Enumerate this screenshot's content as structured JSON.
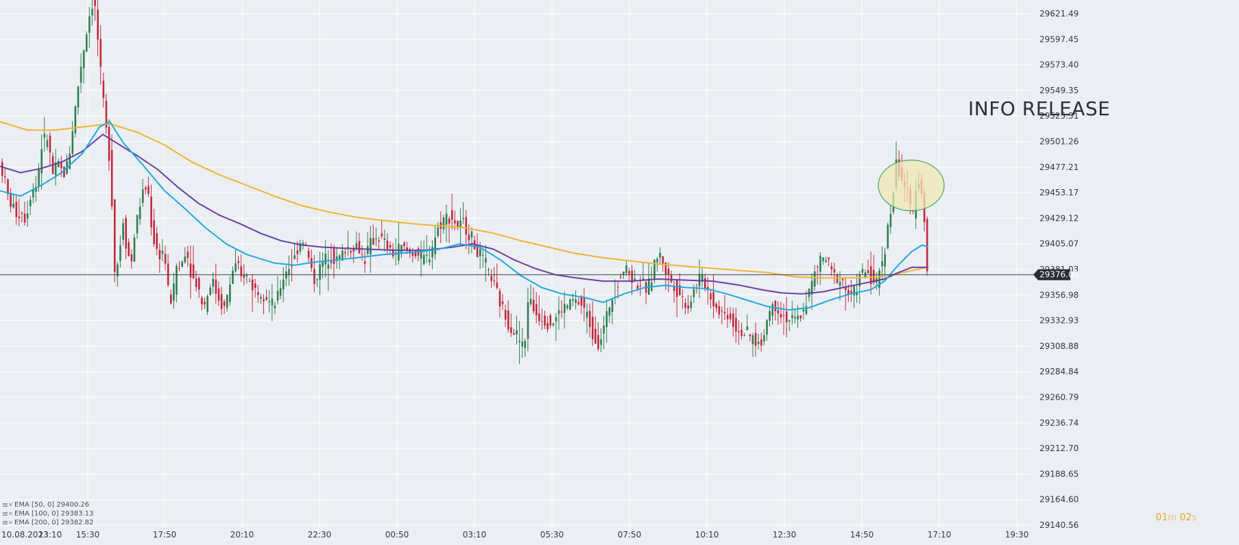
{
  "chart_data": {
    "type": "candlestick",
    "annotation": "INFO RELEASE",
    "current_price_label": "29376.05",
    "current_price": 29376.05,
    "y_ticks": [
      "29621.49",
      "29597.45",
      "29573.40",
      "29549.35",
      "29525.31",
      "29501.26",
      "29477.21",
      "29453.17",
      "29429.12",
      "29405.07",
      "29381.03",
      "29356.98",
      "29332.93",
      "29308.88",
      "29284.84",
      "29260.79",
      "29236.74",
      "29212.70",
      "29188.65",
      "29164.60",
      "29140.56"
    ],
    "ylim": [
      29130.0,
      29632.0
    ],
    "x_ticks": [
      "10.08.2023",
      "13:10",
      "15:30",
      "17:50",
      "20:10",
      "22:30",
      "00:50",
      "03:10",
      "05:30",
      "07:50",
      "10:10",
      "12:30",
      "14:50",
      "17:10",
      "19:30"
    ],
    "grid": true,
    "legend": [
      {
        "label": "EMA [50, 0] 29400.26",
        "color": "#1fa9e1"
      },
      {
        "label": "EMA [100, 0] 29383.13",
        "color": "#6a3fa0"
      },
      {
        "label": "EMA [200, 0] 29382.82",
        "color": "#f0b434"
      }
    ],
    "colors": {
      "up": "#2e7d4f",
      "down": "#c0283c",
      "ema50": "#1fa9e1",
      "ema100": "#6a3fa0",
      "ema200": "#f0b434",
      "price_line": "#3a3f46",
      "price_tag": "#2b3038",
      "highlight_fill": "#efe6b4",
      "highlight_stroke": "#3aa86a"
    },
    "path_points": [
      [
        0,
        29485
      ],
      [
        8,
        29470
      ],
      [
        16,
        29445
      ],
      [
        22,
        29440
      ],
      [
        28,
        29432
      ],
      [
        34,
        29436
      ],
      [
        40,
        29428
      ],
      [
        48,
        29455
      ],
      [
        56,
        29460
      ],
      [
        64,
        29500
      ],
      [
        72,
        29505
      ],
      [
        80,
        29470
      ],
      [
        88,
        29480
      ],
      [
        96,
        29470
      ],
      [
        104,
        29490
      ],
      [
        112,
        29530
      ],
      [
        120,
        29570
      ],
      [
        128,
        29600
      ],
      [
        136,
        29632
      ],
      [
        142,
        29626
      ],
      [
        150,
        29560
      ],
      [
        158,
        29510
      ],
      [
        164,
        29480
      ],
      [
        170,
        29380
      ],
      [
        176,
        29390
      ],
      [
        182,
        29430
      ],
      [
        188,
        29400
      ],
      [
        194,
        29385
      ],
      [
        200,
        29420
      ],
      [
        206,
        29440
      ],
      [
        212,
        29455
      ],
      [
        218,
        29460
      ],
      [
        224,
        29420
      ],
      [
        230,
        29400
      ],
      [
        236,
        29395
      ],
      [
        242,
        29400
      ],
      [
        248,
        29360
      ],
      [
        254,
        29350
      ],
      [
        260,
        29385
      ],
      [
        266,
        29380
      ],
      [
        272,
        29400
      ],
      [
        278,
        29390
      ],
      [
        284,
        29372
      ],
      [
        290,
        29368
      ],
      [
        296,
        29355
      ],
      [
        300,
        29345
      ],
      [
        306,
        29360
      ],
      [
        312,
        29372
      ],
      [
        318,
        29360
      ],
      [
        324,
        29350
      ],
      [
        330,
        29345
      ],
      [
        336,
        29360
      ],
      [
        342,
        29380
      ],
      [
        348,
        29385
      ],
      [
        354,
        29372
      ],
      [
        360,
        29378
      ],
      [
        366,
        29370
      ],
      [
        372,
        29365
      ],
      [
        378,
        29360
      ],
      [
        384,
        29362
      ],
      [
        390,
        29358
      ],
      [
        396,
        29350
      ],
      [
        402,
        29345
      ],
      [
        408,
        29355
      ],
      [
        414,
        29370
      ],
      [
        420,
        29380
      ],
      [
        426,
        29385
      ],
      [
        432,
        29390
      ],
      [
        438,
        29405
      ],
      [
        444,
        29410
      ],
      [
        450,
        29400
      ],
      [
        456,
        29382
      ],
      [
        462,
        29370
      ],
      [
        468,
        29380
      ],
      [
        474,
        29388
      ],
      [
        480,
        29392
      ],
      [
        486,
        29395
      ],
      [
        492,
        29390
      ],
      [
        498,
        29392
      ],
      [
        504,
        29398
      ],
      [
        510,
        29402
      ],
      [
        516,
        29400
      ],
      [
        522,
        29405
      ],
      [
        528,
        29398
      ],
      [
        534,
        29390
      ],
      [
        540,
        29400
      ],
      [
        546,
        29408
      ],
      [
        552,
        29412
      ],
      [
        558,
        29410
      ],
      [
        564,
        29405
      ],
      [
        570,
        29400
      ],
      [
        576,
        29396
      ],
      [
        582,
        29398
      ],
      [
        588,
        29402
      ],
      [
        594,
        29400
      ],
      [
        600,
        29396
      ],
      [
        606,
        29398
      ],
      [
        612,
        29395
      ],
      [
        618,
        29392
      ],
      [
        624,
        29390
      ],
      [
        630,
        29396
      ],
      [
        636,
        29410
      ],
      [
        642,
        29420
      ],
      [
        648,
        29428
      ],
      [
        654,
        29430
      ],
      [
        660,
        29432
      ],
      [
        666,
        29425
      ],
      [
        672,
        29420
      ],
      [
        678,
        29425
      ],
      [
        684,
        29418
      ],
      [
        690,
        29412
      ],
      [
        696,
        29400
      ],
      [
        702,
        29395
      ],
      [
        708,
        29388
      ],
      [
        714,
        29380
      ],
      [
        720,
        29372
      ],
      [
        726,
        29360
      ],
      [
        732,
        29350
      ],
      [
        738,
        29340
      ],
      [
        744,
        29332
      ],
      [
        750,
        29325
      ],
      [
        756,
        29320
      ],
      [
        762,
        29312
      ],
      [
        768,
        29305
      ],
      [
        772,
        29355
      ],
      [
        778,
        29348
      ],
      [
        784,
        29340
      ],
      [
        790,
        29338
      ],
      [
        796,
        29335
      ],
      [
        802,
        29332
      ],
      [
        808,
        29330
      ],
      [
        814,
        29336
      ],
      [
        820,
        29342
      ],
      [
        826,
        29345
      ],
      [
        832,
        29348
      ],
      [
        838,
        29352
      ],
      [
        844,
        29350
      ],
      [
        850,
        29348
      ],
      [
        856,
        29342
      ],
      [
        862,
        29332
      ],
      [
        868,
        29320
      ],
      [
        874,
        29312
      ],
      [
        880,
        29318
      ],
      [
        886,
        29332
      ],
      [
        892,
        29348
      ],
      [
        898,
        29360
      ],
      [
        904,
        29370
      ],
      [
        910,
        29380
      ],
      [
        916,
        29382
      ],
      [
        922,
        29376
      ],
      [
        928,
        29370
      ],
      [
        934,
        29368
      ],
      [
        940,
        29366
      ],
      [
        946,
        29362
      ],
      [
        952,
        29370
      ],
      [
        958,
        29390
      ],
      [
        964,
        29395
      ],
      [
        970,
        29388
      ],
      [
        976,
        29375
      ],
      [
        982,
        29370
      ],
      [
        988,
        29364
      ],
      [
        994,
        29358
      ],
      [
        1000,
        29352
      ],
      [
        1006,
        29345
      ],
      [
        1012,
        29358
      ],
      [
        1018,
        29365
      ],
      [
        1024,
        29375
      ],
      [
        1030,
        29368
      ],
      [
        1036,
        29360
      ],
      [
        1042,
        29352
      ],
      [
        1048,
        29345
      ],
      [
        1054,
        29342
      ],
      [
        1060,
        29338
      ],
      [
        1066,
        29340
      ],
      [
        1072,
        29330
      ],
      [
        1078,
        29325
      ],
      [
        1084,
        29322
      ],
      [
        1090,
        29320
      ],
      [
        1096,
        29318
      ],
      [
        1102,
        29315
      ],
      [
        1108,
        29312
      ],
      [
        1114,
        29310
      ],
      [
        1118,
        29325
      ],
      [
        1124,
        29340
      ],
      [
        1130,
        29348
      ],
      [
        1136,
        29345
      ],
      [
        1142,
        29340
      ],
      [
        1148,
        29336
      ],
      [
        1154,
        29334
      ],
      [
        1160,
        29333
      ],
      [
        1166,
        29334
      ],
      [
        1172,
        29340
      ],
      [
        1178,
        29350
      ],
      [
        1184,
        29362
      ],
      [
        1190,
        29375
      ],
      [
        1196,
        29385
      ],
      [
        1202,
        29392
      ],
      [
        1208,
        29390
      ],
      [
        1214,
        29380
      ],
      [
        1220,
        29375
      ],
      [
        1226,
        29372
      ],
      [
        1232,
        29370
      ],
      [
        1238,
        29360
      ],
      [
        1244,
        29355
      ],
      [
        1250,
        29362
      ],
      [
        1256,
        29372
      ],
      [
        1262,
        29378
      ],
      [
        1268,
        29380
      ],
      [
        1274,
        29372
      ],
      [
        1280,
        29365
      ],
      [
        1286,
        29380
      ],
      [
        1292,
        29398
      ],
      [
        1298,
        29420
      ],
      [
        1304,
        29445
      ],
      [
        1310,
        29480
      ],
      [
        1316,
        29470
      ],
      [
        1322,
        29460
      ],
      [
        1328,
        29445
      ],
      [
        1334,
        29430
      ],
      [
        1340,
        29470
      ],
      [
        1346,
        29460
      ],
      [
        1352,
        29420
      ],
      [
        1354,
        29376
      ]
    ],
    "ema50": [
      [
        0,
        29455
      ],
      [
        30,
        29450
      ],
      [
        60,
        29460
      ],
      [
        90,
        29472
      ],
      [
        120,
        29490
      ],
      [
        145,
        29515
      ],
      [
        160,
        29520
      ],
      [
        180,
        29500
      ],
      [
        210,
        29478
      ],
      [
        240,
        29455
      ],
      [
        270,
        29438
      ],
      [
        300,
        29420
      ],
      [
        330,
        29405
      ],
      [
        360,
        29395
      ],
      [
        400,
        29387
      ],
      [
        430,
        29385
      ],
      [
        460,
        29388
      ],
      [
        490,
        29390
      ],
      [
        520,
        29392
      ],
      [
        560,
        29395
      ],
      [
        600,
        29397
      ],
      [
        640,
        29400
      ],
      [
        670,
        29405
      ],
      [
        700,
        29402
      ],
      [
        730,
        29390
      ],
      [
        760,
        29375
      ],
      [
        790,
        29364
      ],
      [
        820,
        29358
      ],
      [
        850,
        29355
      ],
      [
        880,
        29350
      ],
      [
        910,
        29358
      ],
      [
        940,
        29364
      ],
      [
        970,
        29366
      ],
      [
        1000,
        29364
      ],
      [
        1030,
        29363
      ],
      [
        1060,
        29358
      ],
      [
        1090,
        29352
      ],
      [
        1120,
        29346
      ],
      [
        1150,
        29343
      ],
      [
        1180,
        29345
      ],
      [
        1210,
        29352
      ],
      [
        1240,
        29358
      ],
      [
        1270,
        29362
      ],
      [
        1290,
        29370
      ],
      [
        1310,
        29385
      ],
      [
        1330,
        29398
      ],
      [
        1345,
        29404
      ],
      [
        1354,
        29402
      ]
    ],
    "ema100": [
      [
        0,
        29478
      ],
      [
        30,
        29472
      ],
      [
        60,
        29476
      ],
      [
        90,
        29482
      ],
      [
        120,
        29492
      ],
      [
        150,
        29508
      ],
      [
        170,
        29500
      ],
      [
        200,
        29488
      ],
      [
        230,
        29475
      ],
      [
        260,
        29458
      ],
      [
        290,
        29443
      ],
      [
        320,
        29432
      ],
      [
        350,
        29424
      ],
      [
        380,
        29415
      ],
      [
        410,
        29408
      ],
      [
        440,
        29404
      ],
      [
        470,
        29402
      ],
      [
        500,
        29401
      ],
      [
        540,
        29400
      ],
      [
        580,
        29399
      ],
      [
        620,
        29399
      ],
      [
        660,
        29402
      ],
      [
        690,
        29405
      ],
      [
        720,
        29400
      ],
      [
        750,
        29390
      ],
      [
        780,
        29382
      ],
      [
        810,
        29376
      ],
      [
        840,
        29373
      ],
      [
        880,
        29370
      ],
      [
        920,
        29370
      ],
      [
        960,
        29372
      ],
      [
        1000,
        29371
      ],
      [
        1040,
        29370
      ],
      [
        1080,
        29366
      ],
      [
        1110,
        29362
      ],
      [
        1140,
        29359
      ],
      [
        1170,
        29358
      ],
      [
        1200,
        29360
      ],
      [
        1230,
        29364
      ],
      [
        1260,
        29368
      ],
      [
        1290,
        29372
      ],
      [
        1310,
        29378
      ],
      [
        1330,
        29383
      ],
      [
        1354,
        29383
      ]
    ],
    "ema200": [
      [
        0,
        29520
      ],
      [
        40,
        29512
      ],
      [
        80,
        29512
      ],
      [
        120,
        29515
      ],
      [
        160,
        29518
      ],
      [
        200,
        29510
      ],
      [
        240,
        29498
      ],
      [
        280,
        29482
      ],
      [
        320,
        29470
      ],
      [
        360,
        29460
      ],
      [
        400,
        29450
      ],
      [
        440,
        29441
      ],
      [
        480,
        29435
      ],
      [
        520,
        29430
      ],
      [
        560,
        29427
      ],
      [
        600,
        29424
      ],
      [
        640,
        29422
      ],
      [
        680,
        29420
      ],
      [
        720,
        29415
      ],
      [
        760,
        29408
      ],
      [
        800,
        29402
      ],
      [
        840,
        29396
      ],
      [
        880,
        29392
      ],
      [
        920,
        29389
      ],
      [
        960,
        29386
      ],
      [
        1000,
        29384
      ],
      [
        1040,
        29382
      ],
      [
        1080,
        29380
      ],
      [
        1120,
        29378
      ],
      [
        1160,
        29374
      ],
      [
        1200,
        29373
      ],
      [
        1240,
        29373
      ],
      [
        1280,
        29374
      ],
      [
        1310,
        29377
      ],
      [
        1330,
        29380
      ],
      [
        1354,
        29383
      ]
    ]
  },
  "timer": {
    "minutes": "01",
    "min_unit": "m",
    "seconds": "02",
    "sec_unit": "s"
  }
}
